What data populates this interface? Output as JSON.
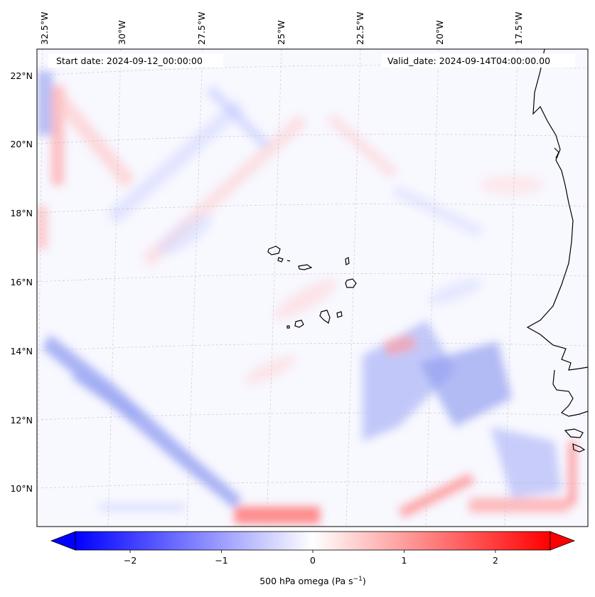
{
  "map": {
    "start_date": "Start date: 2024-09-12_00:00:00",
    "valid_date": "Valid_date: 2024-09-14T04:00:00.00",
    "lon_labels": [
      "32.5°W",
      "30°W",
      "27.5°W",
      "25°W",
      "22.5°W",
      "20°W",
      "17.5°W"
    ],
    "lat_labels": [
      "22°N",
      "20°N",
      "18°N",
      "16°N",
      "14°N",
      "12°N",
      "10°N"
    ],
    "gridlines": true,
    "coastline_color": "#000000"
  },
  "colorbar": {
    "label_main": "500 hPa omega (Pa s",
    "label_exp": "−1",
    "label_tail": ")",
    "ticks": [
      "−2",
      "−1",
      "0",
      "1",
      "2"
    ],
    "tick_values": [
      -2,
      -1,
      0,
      1,
      2
    ],
    "range": [
      -2.6,
      2.6
    ],
    "colormap": "bwr",
    "extend": "both",
    "min_color": "#0000ff",
    "mid_color": "#ffffff",
    "max_color": "#ff0000"
  }
}
